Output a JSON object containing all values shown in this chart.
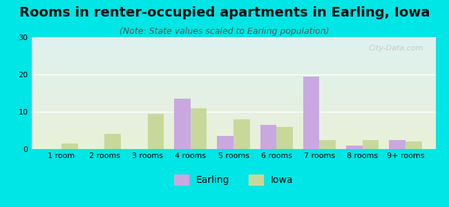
{
  "title": "Rooms in renter-occupied apartments in Earling, Iowa",
  "subtitle": "(Note: State values scaled to Earling population)",
  "categories": [
    "1 room",
    "2 rooms",
    "3 rooms",
    "4 rooms",
    "5 rooms",
    "6 rooms",
    "7 rooms",
    "8 rooms",
    "9+ rooms"
  ],
  "earling_values": [
    0,
    0,
    0,
    13.5,
    3.5,
    6.5,
    19.5,
    1.0,
    2.5
  ],
  "iowa_values": [
    1.5,
    4.0,
    9.5,
    11.0,
    8.0,
    6.0,
    2.5,
    2.5,
    2.0
  ],
  "earling_color": "#c9a8e0",
  "iowa_color": "#c8d89a",
  "background_color": "#00e5e5",
  "plot_bg_top": "#dff2f0",
  "plot_bg_bottom": "#e8f0d8",
  "ylim": [
    0,
    30
  ],
  "yticks": [
    0,
    10,
    20,
    30
  ],
  "bar_width": 0.38,
  "title_fontsize": 14,
  "subtitle_fontsize": 9,
  "tick_fontsize": 8,
  "legend_fontsize": 10,
  "watermark": "City-Data.com"
}
